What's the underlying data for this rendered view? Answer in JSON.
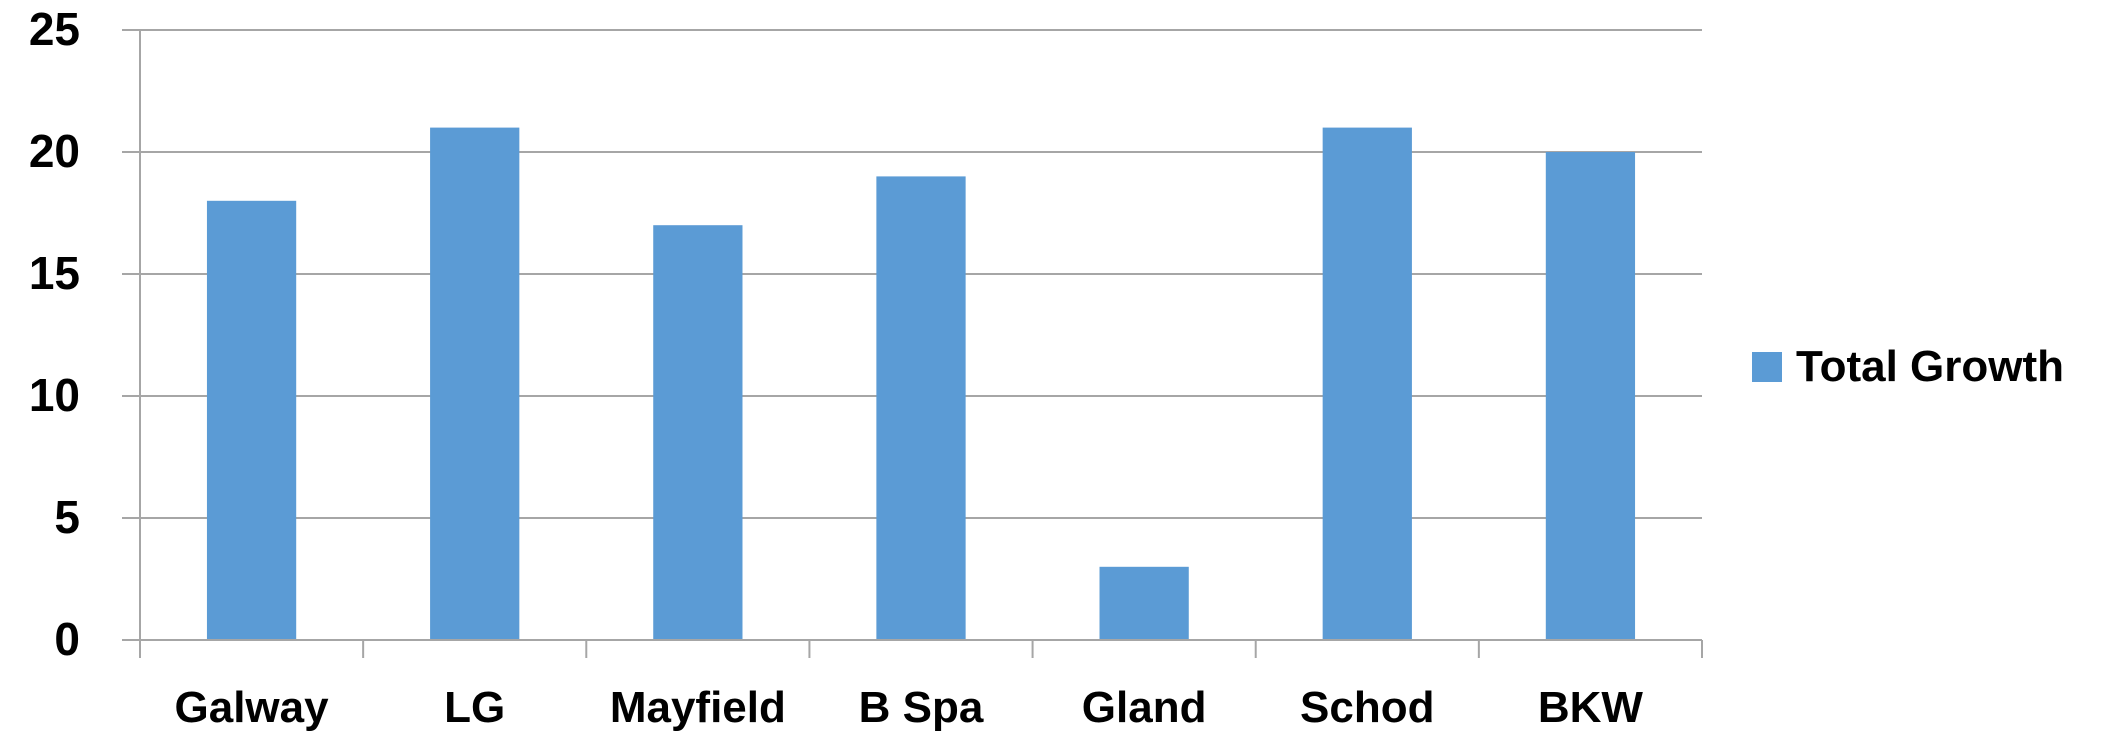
{
  "chart_data": {
    "type": "bar",
    "categories": [
      "Galway",
      "LG",
      "Mayfield",
      "B Spa",
      "Gland",
      "Schod",
      "BKW"
    ],
    "series": [
      {
        "name": "Total Growth",
        "values": [
          18,
          21,
          17,
          19,
          3,
          21,
          20
        ]
      }
    ],
    "ylim": [
      0,
      25
    ],
    "yticks": [
      "0",
      "5",
      "10",
      "15",
      "20",
      "25"
    ],
    "grid": true,
    "legend_position": "right",
    "colors": {
      "bar": "#5b9bd5",
      "grid": "#a6a6a6",
      "axis": "#a6a6a6",
      "text": "#000000"
    }
  }
}
